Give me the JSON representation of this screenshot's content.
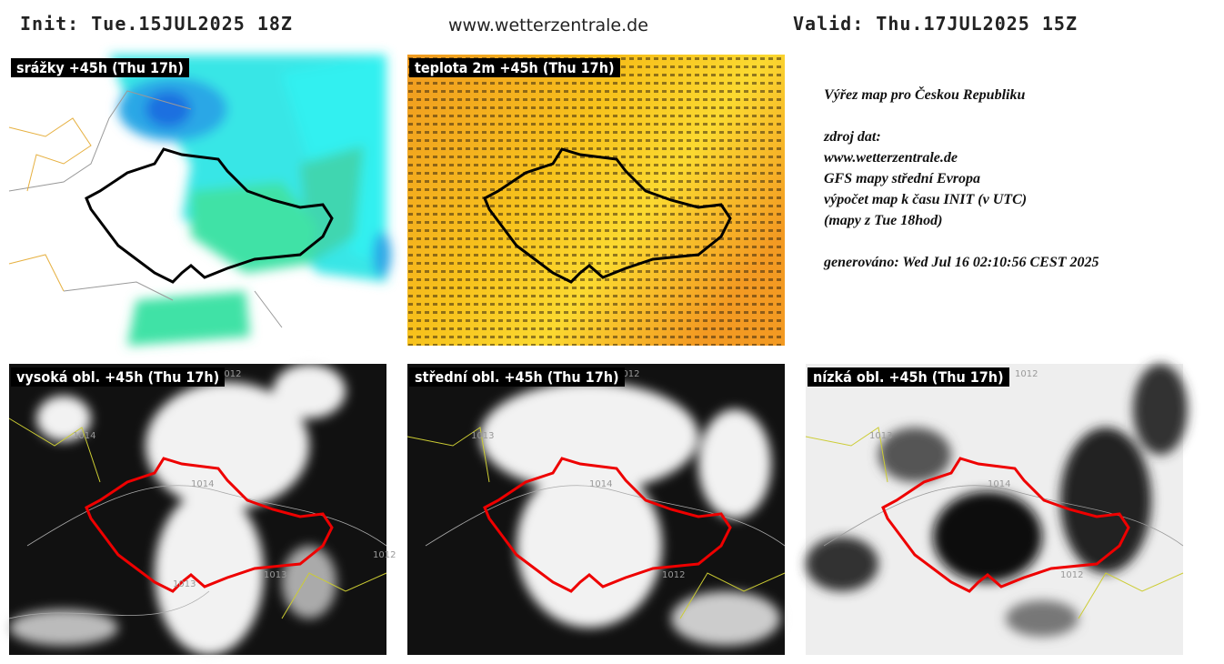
{
  "header": {
    "init": "Init: Tue.15JUL2025 18Z",
    "site": "www.wetterzentrale.de",
    "valid": "Valid: Thu.17JUL2025 15Z"
  },
  "maps": [
    {
      "label": "srážky +45h (Thu 17h)"
    },
    {
      "label": "teplota 2m +45h (Thu 17h)"
    },
    {
      "label": "vysoká obl. +45h (Thu 17h)",
      "contours": [
        "1012",
        "1014",
        "1014",
        "1013",
        "1013",
        "1012"
      ]
    },
    {
      "label": "střední obl. +45h (Thu 17h)",
      "contours": [
        "1012",
        "1014",
        "1013",
        "1012"
      ]
    },
    {
      "label": "nízká obl. +45h (Thu 17h)",
      "contours": [
        "1012",
        "1014",
        "1013",
        "1012"
      ]
    }
  ],
  "info": {
    "lines": [
      "Výřez map pro Českou Republiku",
      "zdroj dat:",
      "www.wetterzentrale.de",
      "GFS mapy střední Evropa",
      "výpočet map k času INIT (v UTC)",
      "(mapy z Tue 18hod)",
      "generováno: Wed Jul 16 02:10:56 CEST 2025"
    ]
  }
}
